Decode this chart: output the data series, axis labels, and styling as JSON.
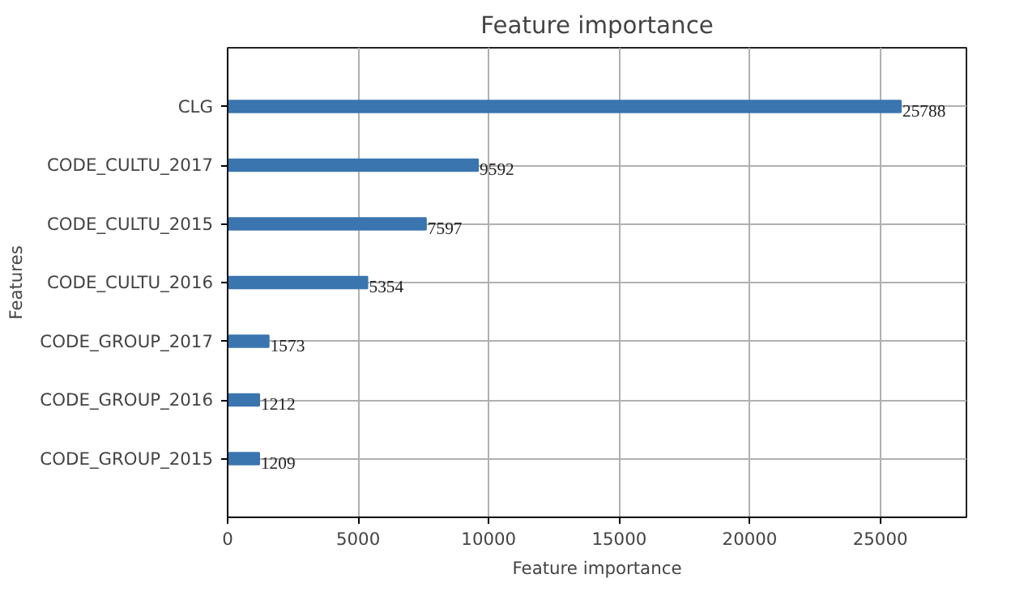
{
  "chart_data": {
    "type": "bar",
    "orientation": "horizontal",
    "title": "Feature importance",
    "xlabel": "Feature importance",
    "ylabel": "Features",
    "categories": [
      "CLG",
      "CODE_CULTU_2017",
      "CODE_CULTU_2015",
      "CODE_CULTU_2016",
      "CODE_GROUP_2017",
      "CODE_GROUP_2016",
      "CODE_GROUP_2015"
    ],
    "values": [
      25788,
      9592,
      7597,
      5354,
      1573,
      1212,
      1209
    ],
    "color": "#3a75b0",
    "xlim": [
      0,
      28300
    ],
    "xticks": [
      0,
      5000,
      10000,
      15000,
      20000,
      25000
    ],
    "grid": true,
    "data_labels": true
  }
}
